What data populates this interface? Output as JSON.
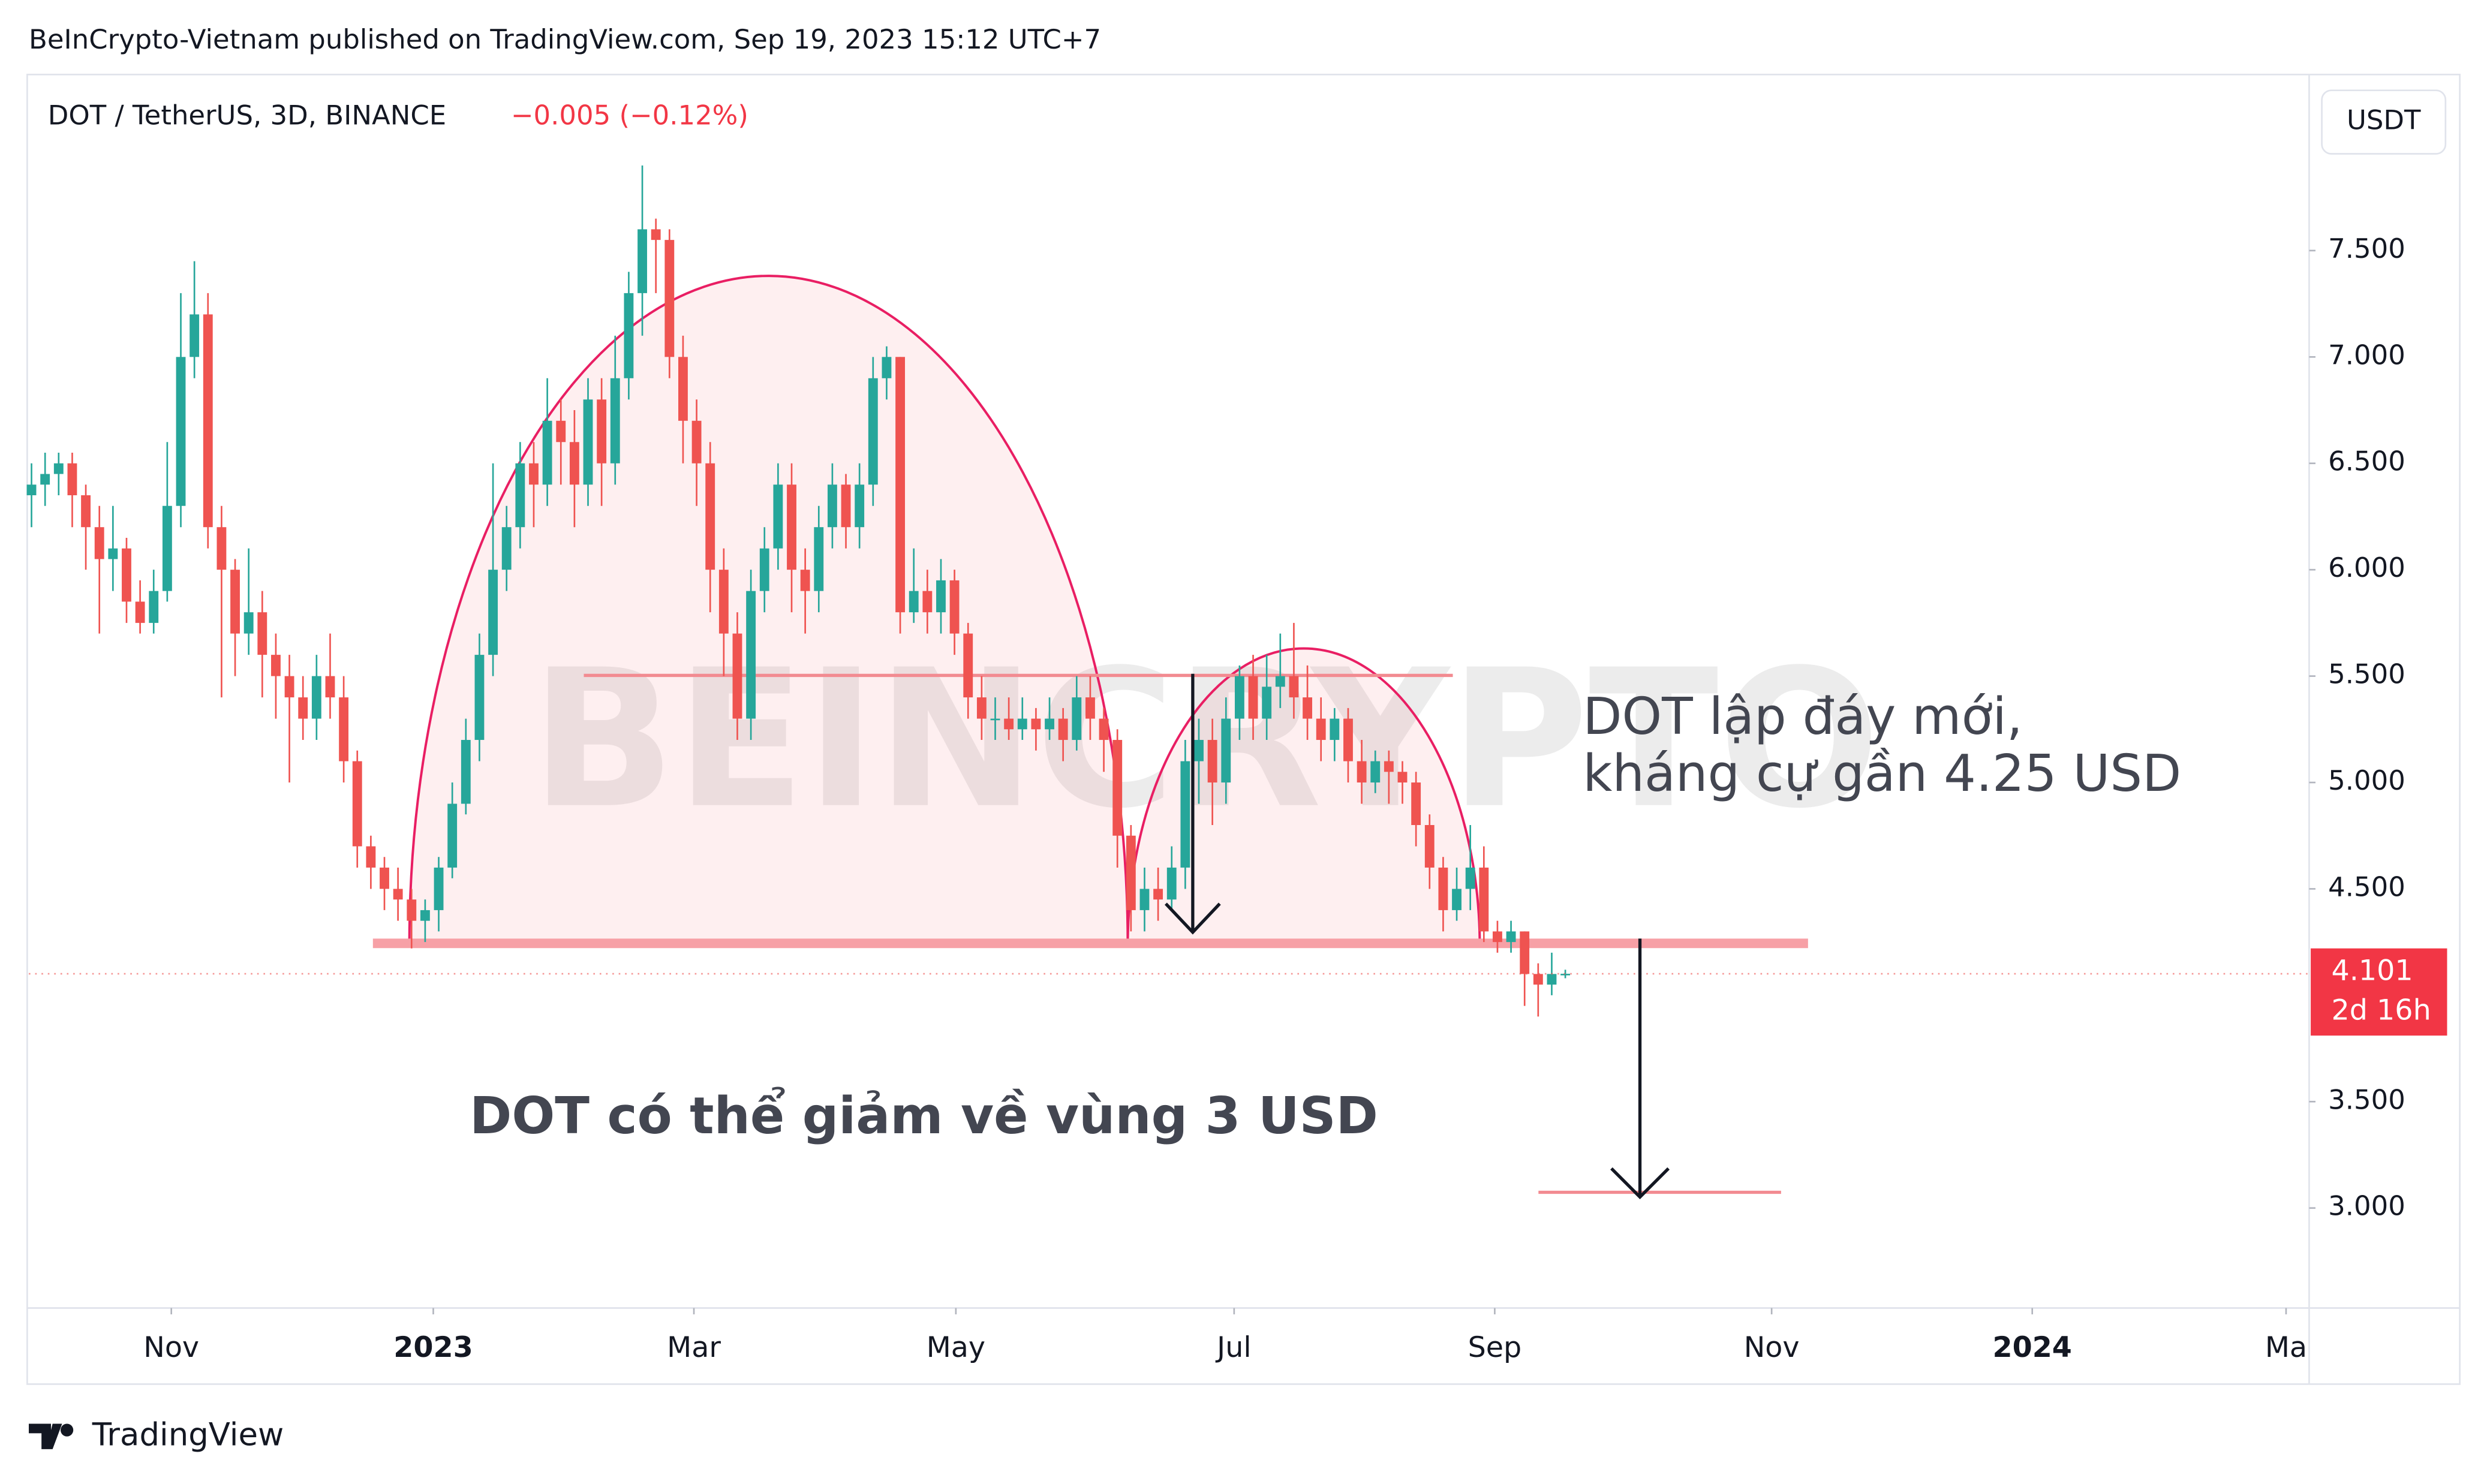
{
  "header": {
    "publisher": "BeInCrypto-Vietnam published on TradingView.com, Sep 19, 2023 15:12 UTC+7"
  },
  "footer": {
    "brand": "TradingView"
  },
  "watermark": "BEINCRYPTO",
  "chart_data": {
    "type": "candlestick",
    "symbol": "DOT / TetherUS, 3D, BINANCE",
    "change": "−0.005 (−0.12%)",
    "currency": "USDT",
    "last_price": 4.101,
    "countdown": "2d 16h",
    "annotations": [
      "DOT lập đáy mới,",
      "kháng cự gần 4.25 USD",
      "DOT có thể giảm về vùng 3 USD"
    ],
    "up_color": "#26a69a",
    "down_color": "#ef5350",
    "grid": false,
    "xlim": [
      -0.2,
      167.8
    ],
    "xticks": [
      {
        "value": 10.3,
        "label": "Nov"
      },
      {
        "value": 29.6,
        "label": "2023"
      },
      {
        "value": 48.8,
        "label": "Mar"
      },
      {
        "value": 68.1,
        "label": "May"
      },
      {
        "value": 88.6,
        "label": "Jul"
      },
      {
        "value": 107.8,
        "label": "Sep"
      },
      {
        "value": 128.2,
        "label": "Nov"
      },
      {
        "value": 147.4,
        "label": "2024"
      },
      {
        "value": 166.1,
        "label": "Ma"
      }
    ],
    "ylim": [
      2.53,
      8.32
    ],
    "yticks": [
      {
        "value": 3,
        "label": "3.000"
      },
      {
        "value": 3.5,
        "label": "3.500"
      },
      {
        "value": 4.5,
        "label": "4.500"
      },
      {
        "value": 5,
        "label": "5.000"
      },
      {
        "value": 5.5,
        "label": "5.500"
      },
      {
        "value": 6,
        "label": "6.000"
      },
      {
        "value": 6.5,
        "label": "6.500"
      },
      {
        "value": 7,
        "label": "7.000"
      },
      {
        "value": 7.5,
        "label": "7.500"
      }
    ],
    "open": [
      6.35,
      6.4,
      6.45,
      6.5,
      6.35,
      6.2,
      6.05,
      6.1,
      5.85,
      5.75,
      5.9,
      6.3,
      7.0,
      7.2,
      6.2,
      6.0,
      5.7,
      5.8,
      5.6,
      5.5,
      5.4,
      5.3,
      5.5,
      5.4,
      5.1,
      4.7,
      4.6,
      4.5,
      4.45,
      4.35,
      4.4,
      4.6,
      4.9,
      5.2,
      5.6,
      6.0,
      6.2,
      6.5,
      6.4,
      6.7,
      6.6,
      6.4,
      6.8,
      6.5,
      6.9,
      7.3,
      7.6,
      7.55,
      7.0,
      6.7,
      6.5,
      6.0,
      5.7,
      5.3,
      5.9,
      6.1,
      6.4,
      6.0,
      5.9,
      6.2,
      6.4,
      6.2,
      6.4,
      6.9,
      7.0,
      5.8,
      5.9,
      5.8,
      5.95,
      5.7,
      5.4,
      5.3,
      5.3,
      5.25,
      5.3,
      5.25,
      5.3,
      5.2,
      5.4,
      5.3,
      5.2,
      4.75,
      4.4,
      4.5,
      4.45,
      4.6,
      5.1,
      5.2,
      5.0,
      5.3,
      5.5,
      5.3,
      5.45,
      5.5,
      5.4,
      5.3,
      5.2,
      5.3,
      5.1,
      5.0,
      5.1,
      5.05,
      5.0,
      4.8,
      4.6,
      4.4,
      4.5,
      4.6,
      4.3,
      4.25,
      4.3,
      4.1,
      4.05,
      4.1
    ],
    "high": [
      6.5,
      6.55,
      6.55,
      6.55,
      6.4,
      6.3,
      6.3,
      6.15,
      5.95,
      6.0,
      6.6,
      7.3,
      7.45,
      7.3,
      6.3,
      6.05,
      6.1,
      5.9,
      5.7,
      5.6,
      5.5,
      5.6,
      5.7,
      5.5,
      5.15,
      4.75,
      4.65,
      4.6,
      4.5,
      4.45,
      4.65,
      5.0,
      5.3,
      5.7,
      6.5,
      6.3,
      6.6,
      6.6,
      6.9,
      6.8,
      6.75,
      6.9,
      6.9,
      7.1,
      7.4,
      7.9,
      7.65,
      7.6,
      7.1,
      6.8,
      6.6,
      6.1,
      5.8,
      6.0,
      6.2,
      6.5,
      6.5,
      6.1,
      6.3,
      6.5,
      6.45,
      6.5,
      7.0,
      7.05,
      7.0,
      6.1,
      6.0,
      6.05,
      6.0,
      5.75,
      5.5,
      5.4,
      5.4,
      5.4,
      5.35,
      5.4,
      5.35,
      5.5,
      5.5,
      5.35,
      5.25,
      4.8,
      4.6,
      4.6,
      4.7,
      5.2,
      5.3,
      5.3,
      5.4,
      5.55,
      5.6,
      5.6,
      5.7,
      5.75,
      5.55,
      5.4,
      5.35,
      5.35,
      5.2,
      5.15,
      5.15,
      5.1,
      5.05,
      4.85,
      4.65,
      4.6,
      4.8,
      4.7,
      4.35,
      4.35,
      4.3,
      4.15,
      4.2,
      4.12
    ],
    "low": [
      6.2,
      6.3,
      6.35,
      6.2,
      6.0,
      5.7,
      5.9,
      5.75,
      5.7,
      5.7,
      5.85,
      6.2,
      6.9,
      6.1,
      5.4,
      5.5,
      5.6,
      5.4,
      5.3,
      5.0,
      5.2,
      5.2,
      5.3,
      5.0,
      4.6,
      4.5,
      4.4,
      4.35,
      4.22,
      4.25,
      4.3,
      4.55,
      4.85,
      5.1,
      5.5,
      5.9,
      6.1,
      6.2,
      6.3,
      6.4,
      6.2,
      6.3,
      6.3,
      6.4,
      6.8,
      7.1,
      7.3,
      6.9,
      6.5,
      6.3,
      5.8,
      5.5,
      5.2,
      5.2,
      5.8,
      6.0,
      5.8,
      5.7,
      5.8,
      6.1,
      6.1,
      6.1,
      6.3,
      6.8,
      5.7,
      5.75,
      5.7,
      5.7,
      5.6,
      5.3,
      5.2,
      5.2,
      5.2,
      5.2,
      5.15,
      5.2,
      5.1,
      5.15,
      5.2,
      5.05,
      4.6,
      4.3,
      4.3,
      4.35,
      4.4,
      4.5,
      4.9,
      4.8,
      4.9,
      5.2,
      5.2,
      5.2,
      5.35,
      5.3,
      5.2,
      5.1,
      5.1,
      5.0,
      4.9,
      4.95,
      4.9,
      4.9,
      4.7,
      4.5,
      4.3,
      4.35,
      4.4,
      4.25,
      4.2,
      4.2,
      3.95,
      3.9,
      4.0,
      4.08
    ],
    "close": [
      6.4,
      6.45,
      6.5,
      6.35,
      6.2,
      6.05,
      6.1,
      5.85,
      5.75,
      5.9,
      6.3,
      7.0,
      7.2,
      6.2,
      6.0,
      5.7,
      5.8,
      5.6,
      5.5,
      5.4,
      5.3,
      5.5,
      5.4,
      5.1,
      4.7,
      4.6,
      4.5,
      4.45,
      4.35,
      4.4,
      4.6,
      4.9,
      5.2,
      5.6,
      6.0,
      6.2,
      6.5,
      6.4,
      6.7,
      6.6,
      6.4,
      6.8,
      6.5,
      6.9,
      7.3,
      7.6,
      7.55,
      7.0,
      6.7,
      6.5,
      6.0,
      5.7,
      5.3,
      5.9,
      6.1,
      6.4,
      6.0,
      5.9,
      6.2,
      6.4,
      6.2,
      6.4,
      6.9,
      7.0,
      5.8,
      5.9,
      5.8,
      5.95,
      5.7,
      5.4,
      5.3,
      5.3,
      5.25,
      5.3,
      5.25,
      5.3,
      5.2,
      5.4,
      5.3,
      5.2,
      4.75,
      4.4,
      4.5,
      4.45,
      4.6,
      5.1,
      5.2,
      5.0,
      5.3,
      5.5,
      5.3,
      5.45,
      5.5,
      5.4,
      5.3,
      5.2,
      5.3,
      5.1,
      5.0,
      5.1,
      5.05,
      5.0,
      4.8,
      4.6,
      4.4,
      4.5,
      4.6,
      4.3,
      4.25,
      4.3,
      4.1,
      4.05,
      4.1,
      4.101
    ]
  }
}
